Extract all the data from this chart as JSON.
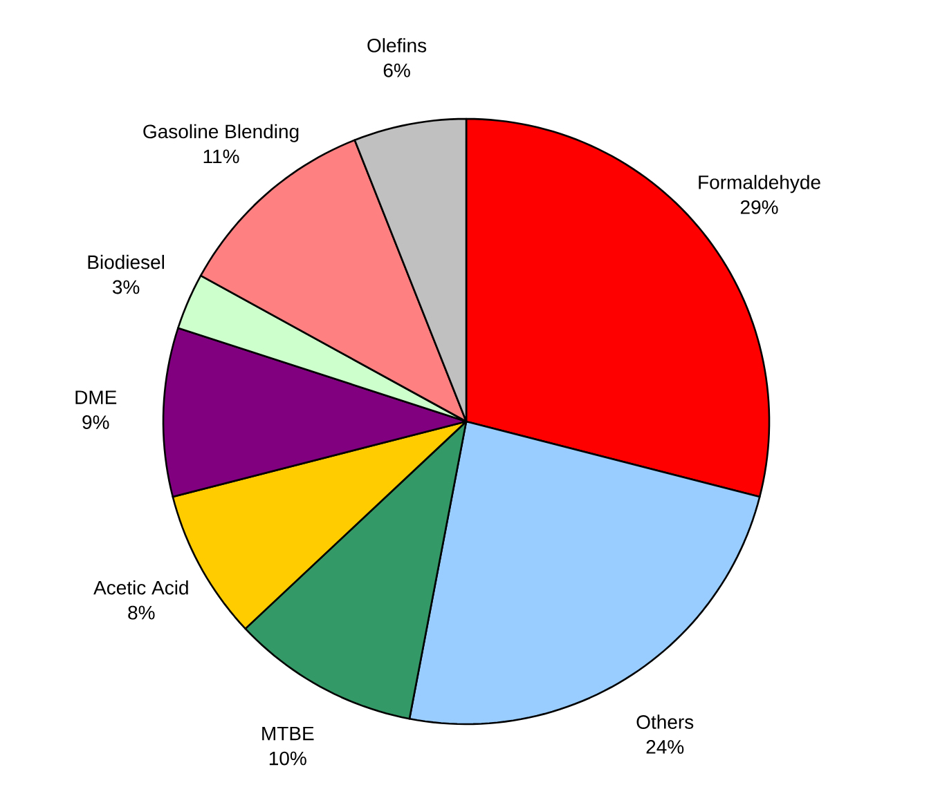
{
  "chart_data": {
    "type": "pie",
    "categories": [
      "Formaldehyde",
      "Others",
      "MTBE",
      "Acetic Acid",
      "DME",
      "Biodiesel",
      "Gasoline Blending",
      "Olefins"
    ],
    "values": [
      29,
      24,
      10,
      8,
      9,
      3,
      11,
      6
    ],
    "value_labels": [
      "29%",
      "24%",
      "10%",
      "8%",
      "9%",
      "3%",
      "11%",
      "6%"
    ],
    "colors": [
      "#ff0000",
      "#99ccff",
      "#339966",
      "#ffcc00",
      "#800080",
      "#ccffcc",
      "#ff8080",
      "#c0c0c0"
    ]
  }
}
